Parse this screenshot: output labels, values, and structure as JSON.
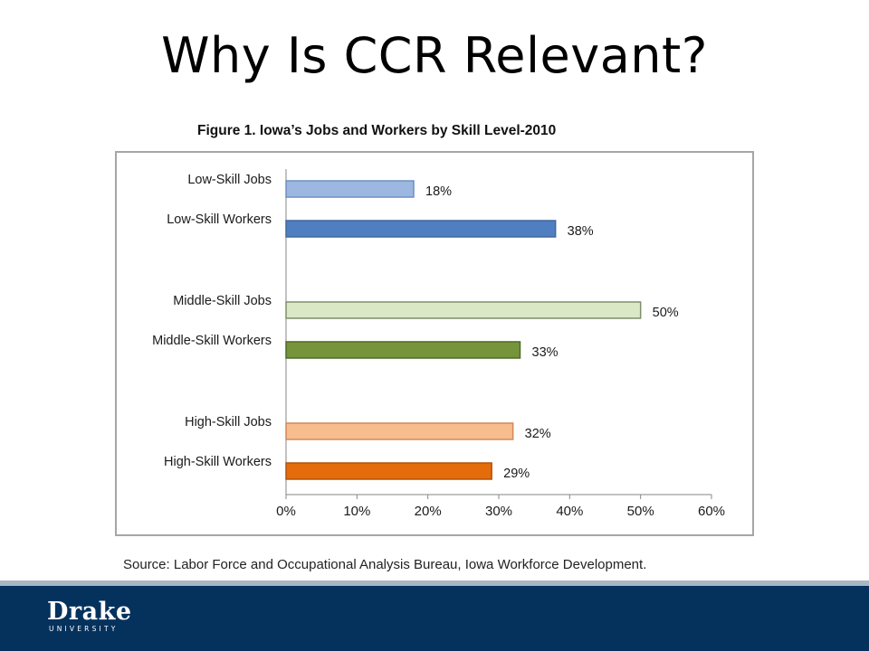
{
  "slide": {
    "title": "Why Is CCR Relevant?",
    "source": "Source:  Labor Force and Occupational Analysis Bureau, Iowa Workforce Development."
  },
  "footer": {
    "logo_text": "Drake",
    "logo_subtext": "UNIVERSITY",
    "background_color": "#05325d"
  },
  "chart_data": {
    "type": "bar",
    "orientation": "horizontal",
    "title": "Figure 1.  Iowa’s Jobs and Workers by Skill Level-2010",
    "categories": [
      "Low-Skill Jobs",
      "Low-Skill Workers",
      "Middle-Skill Jobs",
      "Middle-Skill Workers",
      "High-Skill Jobs",
      "High-Skill Workers"
    ],
    "values": [
      18,
      38,
      50,
      33,
      32,
      29
    ],
    "value_labels": [
      "18%",
      "38%",
      "50%",
      "33%",
      "32%",
      "29%"
    ],
    "colors": [
      "#9db8e0",
      "#4f7fc0",
      "#dbe8c6",
      "#76953a",
      "#f7bd8e",
      "#e46c0a"
    ],
    "xlim": [
      0,
      60
    ],
    "x_ticks": [
      "0%",
      "10%",
      "20%",
      "30%",
      "40%",
      "50%",
      "60%"
    ],
    "xlabel": "",
    "ylabel": "",
    "grid": false,
    "legend": "none"
  }
}
